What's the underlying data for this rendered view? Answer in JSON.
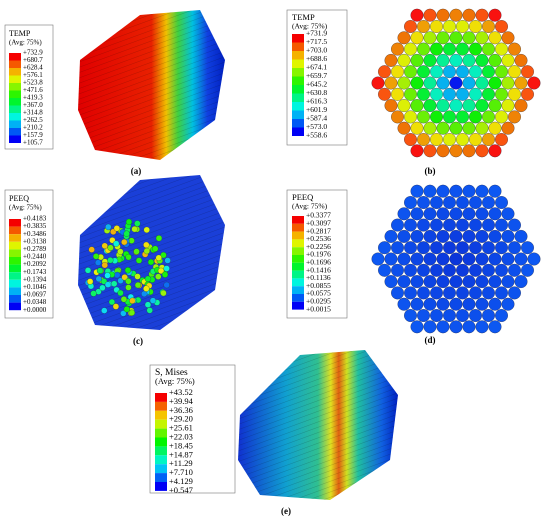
{
  "panels": [
    {
      "title": "TEMP",
      "subtitle": "(Avg: 75%)",
      "values": [
        "+732.9",
        "+680.7",
        "+628.4",
        "+576.1",
        "+523.8",
        "+471.6",
        "+419.3",
        "+367.0",
        "+314.8",
        "+262.5",
        "+210.2",
        "+157.9",
        "+105.7"
      ],
      "caption": "(a)"
    },
    {
      "title": "TEMP",
      "subtitle": "(Avg: 75%)",
      "values": [
        "+731.9",
        "+717.5",
        "+703.0",
        "+688.6",
        "+674.1",
        "+659.7",
        "+645.2",
        "+630.8",
        "+616.3",
        "+601.9",
        "+587.4",
        "+573.0",
        "+558.6"
      ],
      "caption": "(b)"
    },
    {
      "title": "PEEQ",
      "subtitle": "(Avg: 75%)",
      "values": [
        "+0.4183",
        "+0.3835",
        "+0.3486",
        "+0.3138",
        "+0.2789",
        "+0.2440",
        "+0.2092",
        "+0.1743",
        "+0.1394",
        "+0.1046",
        "+0.0697",
        "+0.0348",
        "+0.0000"
      ],
      "caption": "(c)"
    },
    {
      "title": "PEEQ",
      "subtitle": "(Avg: 75%)",
      "values": [
        "+0.3377",
        "+0.3097",
        "+0.2817",
        "+0.2536",
        "+0.2256",
        "+0.1976",
        "+0.1696",
        "+0.1416",
        "+0.1136",
        "+0.0855",
        "+0.0575",
        "+0.0295",
        "+0.0015"
      ],
      "caption": "(d)"
    },
    {
      "title": "S, Mises",
      "subtitle": "(Avg: 75%)",
      "values": [
        "+43.52",
        "+39.94",
        "+36.36",
        "+29.20",
        "+25.61",
        "+22.03",
        "+18.45",
        "+14.87",
        "+11.29",
        "+7.710",
        "+4.129",
        "+0.547"
      ],
      "caption": "(e)"
    }
  ]
}
